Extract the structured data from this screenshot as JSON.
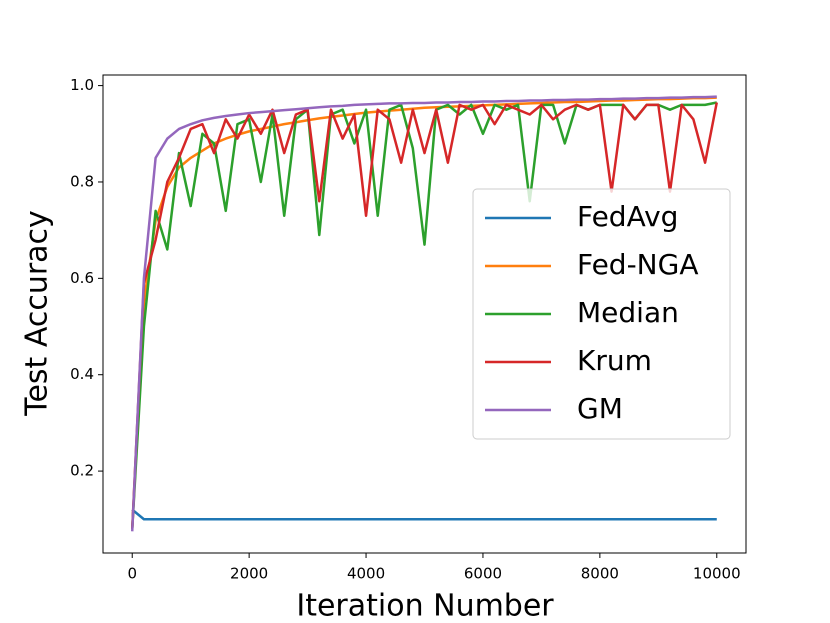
{
  "chart_data": {
    "type": "line",
    "xlabel": "Iteration Number",
    "ylabel": "Test Accuracy",
    "x": [
      0,
      200,
      400,
      600,
      800,
      1000,
      1200,
      1400,
      1600,
      1800,
      2000,
      2200,
      2400,
      2600,
      2800,
      3000,
      3200,
      3400,
      3600,
      3800,
      4000,
      4200,
      4400,
      4600,
      4800,
      5000,
      5200,
      5400,
      5600,
      5800,
      6000,
      6200,
      6400,
      6600,
      6800,
      7000,
      7200,
      7400,
      7600,
      7800,
      8000,
      8200,
      8400,
      8600,
      8800,
      9000,
      9200,
      9400,
      9600,
      9800,
      10000
    ],
    "series": [
      {
        "name": "FedAvg",
        "color": "#1f77b4",
        "values": [
          0.12,
          0.1,
          0.1,
          0.1,
          0.1,
          0.1,
          0.1,
          0.1,
          0.1,
          0.1,
          0.1,
          0.1,
          0.1,
          0.1,
          0.1,
          0.1,
          0.1,
          0.1,
          0.1,
          0.1,
          0.1,
          0.1,
          0.1,
          0.1,
          0.1,
          0.1,
          0.1,
          0.1,
          0.1,
          0.1,
          0.1,
          0.1,
          0.1,
          0.1,
          0.1,
          0.1,
          0.1,
          0.1,
          0.1,
          0.1,
          0.1,
          0.1,
          0.1,
          0.1,
          0.1,
          0.1,
          0.1,
          0.1,
          0.1,
          0.1,
          0.1
        ]
      },
      {
        "name": "Fed-NGA",
        "color": "#ff7f0e",
        "values": [
          0.08,
          0.55,
          0.72,
          0.79,
          0.83,
          0.85,
          0.865,
          0.88,
          0.89,
          0.898,
          0.905,
          0.91,
          0.915,
          0.92,
          0.924,
          0.928,
          0.932,
          0.935,
          0.938,
          0.941,
          0.944,
          0.946,
          0.948,
          0.95,
          0.952,
          0.954,
          0.955,
          0.956,
          0.957,
          0.958,
          0.959,
          0.96,
          0.961,
          0.962,
          0.963,
          0.964,
          0.965,
          0.966,
          0.966,
          0.967,
          0.968,
          0.969,
          0.969,
          0.97,
          0.971,
          0.972,
          0.972,
          0.973,
          0.974,
          0.974,
          0.975
        ]
      },
      {
        "name": "Median",
        "color": "#2ca02c",
        "values": [
          0.08,
          0.5,
          0.74,
          0.66,
          0.86,
          0.75,
          0.9,
          0.88,
          0.74,
          0.92,
          0.93,
          0.8,
          0.94,
          0.73,
          0.93,
          0.95,
          0.69,
          0.94,
          0.95,
          0.88,
          0.95,
          0.73,
          0.95,
          0.96,
          0.87,
          0.67,
          0.95,
          0.96,
          0.94,
          0.96,
          0.9,
          0.96,
          0.95,
          0.96,
          0.76,
          0.96,
          0.96,
          0.88,
          0.96,
          0.95,
          0.96,
          0.96,
          0.96,
          0.93,
          0.96,
          0.96,
          0.95,
          0.96,
          0.96,
          0.96,
          0.965
        ]
      },
      {
        "name": "Krum",
        "color": "#d62728",
        "values": [
          0.08,
          0.59,
          0.68,
          0.8,
          0.85,
          0.91,
          0.92,
          0.86,
          0.93,
          0.89,
          0.94,
          0.9,
          0.95,
          0.86,
          0.94,
          0.95,
          0.76,
          0.95,
          0.89,
          0.94,
          0.73,
          0.95,
          0.93,
          0.84,
          0.95,
          0.86,
          0.95,
          0.84,
          0.96,
          0.95,
          0.96,
          0.92,
          0.96,
          0.95,
          0.94,
          0.96,
          0.93,
          0.95,
          0.96,
          0.95,
          0.96,
          0.78,
          0.96,
          0.93,
          0.96,
          0.96,
          0.78,
          0.96,
          0.93,
          0.84,
          0.965
        ]
      },
      {
        "name": "GM",
        "color": "#9467bd",
        "values": [
          0.075,
          0.6,
          0.85,
          0.89,
          0.91,
          0.92,
          0.928,
          0.933,
          0.937,
          0.94,
          0.943,
          0.945,
          0.947,
          0.949,
          0.951,
          0.953,
          0.955,
          0.957,
          0.958,
          0.96,
          0.961,
          0.962,
          0.963,
          0.963,
          0.964,
          0.964,
          0.965,
          0.965,
          0.966,
          0.966,
          0.967,
          0.967,
          0.968,
          0.968,
          0.969,
          0.969,
          0.97,
          0.97,
          0.971,
          0.971,
          0.972,
          0.972,
          0.973,
          0.973,
          0.974,
          0.974,
          0.975,
          0.975,
          0.976,
          0.976,
          0.977
        ]
      }
    ],
    "xlim": [
      -500,
      10500
    ],
    "ylim": [
      0.03,
      1.022
    ],
    "xticks": [
      0,
      2000,
      4000,
      6000,
      8000,
      10000
    ],
    "yticks": [
      0.2,
      0.4,
      0.6,
      0.8,
      {
        "value": 1.0,
        "label": "1.0"
      }
    ],
    "grid": false,
    "legend": "center right"
  }
}
